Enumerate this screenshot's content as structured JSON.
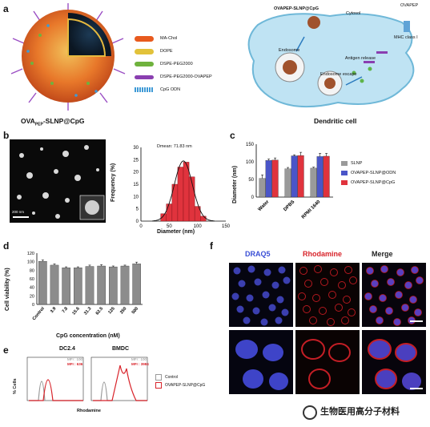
{
  "panel_labels": [
    "a",
    "b",
    "c",
    "d",
    "e",
    "f"
  ],
  "panel_a": {
    "nanoparticle_title_prefix": "OVA",
    "nanoparticle_title_sub": "PEP",
    "nanoparticle_title_suffix": "-SLNP@CpG",
    "legend": [
      {
        "label": "MA-Chol",
        "color": "#e85a1e"
      },
      {
        "label": "DOPE",
        "color": "#e2c23a"
      },
      {
        "label": "DSPE-PEG2000",
        "color": "#6fb23d"
      },
      {
        "label": "DSPE-PEG2000-OVAPEP",
        "color": "#8a3fb0"
      },
      {
        "label": "CpG ODN",
        "color": "#3f9ad6"
      }
    ],
    "cell": {
      "title": "Dendritic cell",
      "cytosol": "Cytosol",
      "endosome": "Endosome",
      "endosome_escape": "Endosome escape",
      "antigen_release": "Antigen release",
      "particle": "OVAPEP-SLNP@CpG",
      "mhc": "MHC class I",
      "ovapep": "OVAPEP"
    }
  },
  "panel_b": {
    "scale_bar": "200 nm",
    "hist_annotation": "Dmean: 71.83 nm",
    "chart_data": {
      "type": "bar",
      "title": "",
      "xlabel": "Diameter (nm)",
      "ylabel": "Frequency (%)",
      "xlim": [
        0,
        150
      ],
      "ylim": [
        0,
        30
      ],
      "xticks": [
        "0",
        "50",
        "100",
        "150"
      ],
      "yticks": [
        "0",
        "5",
        "10",
        "15",
        "20",
        "25",
        "30"
      ],
      "bins": [
        40,
        50,
        60,
        70,
        80,
        90,
        100,
        110
      ],
      "values": [
        3,
        7,
        15,
        22,
        24,
        18,
        6,
        2
      ]
    }
  },
  "panel_c": {
    "chart_data": {
      "type": "bar",
      "xlabel": "",
      "ylabel": "Diameter (nm)",
      "ylim": [
        0,
        150
      ],
      "yticks": [
        "0",
        "50",
        "100",
        "150"
      ],
      "categories": [
        "Water",
        "DPBS",
        "RPMI 1640"
      ],
      "series": [
        {
          "name": "SLNP",
          "color": "#9a9a9a",
          "values": [
            53,
            80,
            82
          ],
          "errors": [
            10,
            4,
            3
          ]
        },
        {
          "name": "OVAPEP-SLNP@ODN",
          "color": "#4a55c8",
          "values": [
            104,
            117,
            115
          ],
          "errors": [
            4,
            3,
            9
          ]
        },
        {
          "name": "OVAPEP-SLNP@CpG",
          "color": "#e0333d",
          "values": [
            105,
            118,
            116
          ],
          "errors": [
            6,
            9,
            8
          ]
        }
      ],
      "legend_position": "right"
    }
  },
  "panel_d": {
    "chart_data": {
      "type": "bar",
      "xlabel": "CpG concentration (nM)",
      "ylabel": "Cell viability (%)",
      "ylim": [
        0,
        120
      ],
      "yticks": [
        "0",
        "20",
        "40",
        "60",
        "80",
        "100",
        "120"
      ],
      "categories": [
        "Control",
        "3.9",
        "7.8",
        "15.6",
        "31.3",
        "62.5",
        "125",
        "250",
        "500"
      ],
      "values": [
        101,
        92,
        86,
        86,
        89,
        90,
        88,
        90,
        95
      ],
      "errors": [
        3,
        3,
        2,
        2,
        3,
        3,
        2,
        2,
        4
      ]
    }
  },
  "panel_e": {
    "plots": [
      {
        "title": "DC2.4",
        "mfi_control": "MFI : 100",
        "mfi_sample": "MFI : 636"
      },
      {
        "title": "BMDC",
        "mfi_control": "MFI : 100",
        "mfi_sample": "MFI : 3984"
      }
    ],
    "ylabel": "% Cells",
    "xlabel": "Rhodamine",
    "legend": [
      {
        "label": "Control",
        "color": "#9a9a9a"
      },
      {
        "label": "OVAPEP-SLNP@CpG",
        "color": "#d8232a"
      }
    ]
  },
  "panel_f": {
    "columns": [
      {
        "label": "DRAQ5",
        "color": "#3a4fd6"
      },
      {
        "label": "Rhodamine",
        "color": "#d8232a"
      },
      {
        "label": "Merge",
        "color": "#222222"
      }
    ]
  },
  "watermark": "生物医用高分子材料"
}
